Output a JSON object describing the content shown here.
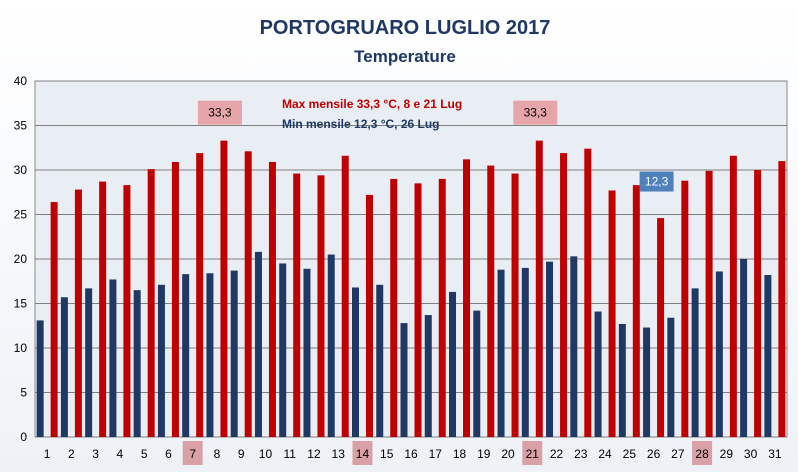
{
  "chart_data": {
    "type": "bar",
    "title": "PORTOGRUARO LUGLIO  2017",
    "subtitle": "Temperature",
    "categories": [
      "1",
      "2",
      "3",
      "4",
      "5",
      "6",
      "7",
      "8",
      "9",
      "10",
      "11",
      "12",
      "13",
      "14",
      "15",
      "16",
      "17",
      "18",
      "19",
      "20",
      "21",
      "22",
      "23",
      "24",
      "25",
      "26",
      "27",
      "28",
      "29",
      "30",
      "31"
    ],
    "series": [
      {
        "key": "min",
        "color": "#1f3864",
        "values": [
          13.1,
          15.7,
          16.7,
          17.7,
          16.5,
          17.1,
          18.3,
          18.4,
          18.7,
          20.8,
          19.5,
          18.9,
          20.5,
          16.8,
          17.1,
          12.8,
          13.7,
          16.3,
          14.2,
          18.8,
          19.0,
          19.7,
          20.3,
          14.1,
          12.7,
          12.3,
          13.4,
          16.7,
          18.6,
          20.0,
          18.2
        ]
      },
      {
        "key": "max",
        "color": "#c00000",
        "values": [
          26.4,
          27.8,
          28.7,
          28.3,
          30.1,
          30.9,
          31.9,
          33.3,
          32.1,
          30.9,
          29.6,
          29.4,
          31.6,
          27.2,
          29.0,
          28.5,
          29.0,
          31.2,
          30.5,
          29.6,
          33.3,
          31.9,
          32.4,
          27.7,
          28.3,
          24.6,
          28.8,
          29.9,
          31.6,
          30.0,
          31.0
        ]
      }
    ],
    "ylim": [
      0,
      40
    ],
    "yticks": [
      "0",
      "5",
      "10",
      "15",
      "20",
      "25",
      "30",
      "35",
      "40"
    ],
    "grid": true,
    "legend": "none",
    "highlighted_categories": [
      "7",
      "14",
      "21",
      "28"
    ],
    "annotations": {
      "max_text": "Max mensile  33,3 °C, 8 e 21 Lug",
      "min_text": "Min mensile 12,3 °C, 26 Lug",
      "callouts": [
        {
          "label": "33,3",
          "category": "8",
          "value": 33.3,
          "kind": "max"
        },
        {
          "label": "33,3",
          "category": "21",
          "value": 33.3,
          "kind": "max"
        },
        {
          "label": "12,3",
          "category": "26",
          "value": 12.3,
          "kind": "min"
        }
      ]
    },
    "colors": {
      "highlight_box": "#d9a1a6",
      "max_callout_box": "#e6a5a8",
      "min_callout_box": "#4f81bd"
    }
  }
}
